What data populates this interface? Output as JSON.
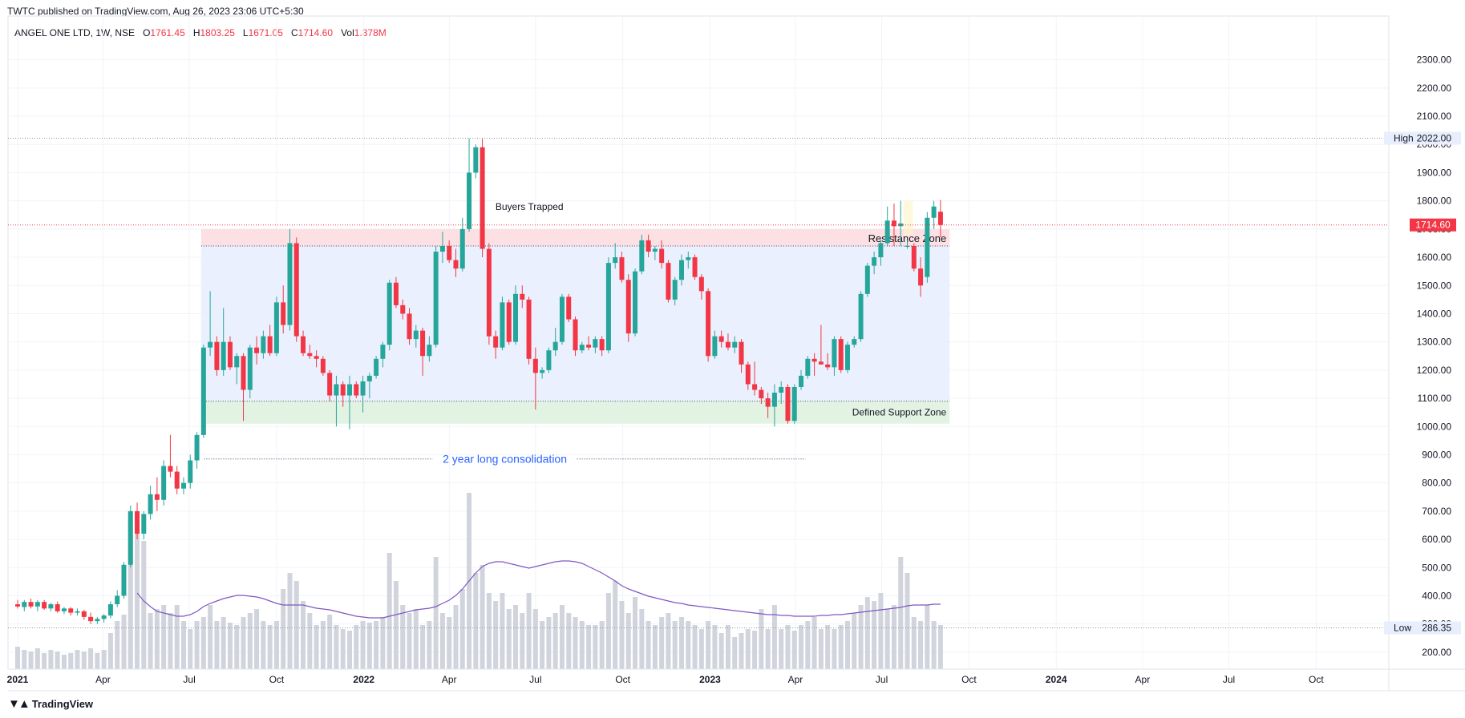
{
  "publisher_line": "TWTC published on TradingView.com, Aug 26, 2023 23:06 UTC+5:30",
  "symbol": "ANGEL ONE LTD, 1W, NSE",
  "ohlc": {
    "O_label": "O",
    "O": "1761.45",
    "H_label": "H",
    "H": "1803.25",
    "L_label": "L",
    "L": "1671.05",
    "C_label": "C",
    "C": "1714.60",
    "Vol_label": "Vol",
    "Vol": "1.378M"
  },
  "branding": "TradingView",
  "colors": {
    "up": "#26a69a",
    "down": "#f23645",
    "volume": "#d1d4dc",
    "ma": "#7e57c2",
    "resistance_fill": "#fcdde0",
    "consolidation_fill": "#e8eefd",
    "support_fill": "#dff2e1",
    "label_blue": "#2962ff"
  },
  "chart_data": {
    "type": "candlestick",
    "interval": "1W",
    "price_axis": {
      "range": [
        140,
        2370
      ],
      "ticks": [
        200,
        300,
        400,
        500,
        600,
        700,
        800,
        900,
        1000,
        1100,
        1200,
        1300,
        1400,
        1500,
        1600,
        1700,
        1800,
        1900,
        2000,
        2100,
        2200,
        2300
      ],
      "tick_labels": [
        "200.00",
        "300.00",
        "400.00",
        "500.00",
        "600.00",
        "700.00",
        "800.00",
        "900.00",
        "1000.00",
        "1100.00",
        "1200.00",
        "1300.00",
        "1400.00",
        "1500.00",
        "1600.00",
        "1700.00",
        "1800.00",
        "1900.00",
        "2000.00",
        "2100.00",
        "2200.00",
        "2300.00"
      ]
    },
    "time_axis": {
      "labels": [
        {
          "text": "2021",
          "date": "2021-01-01",
          "bold": true
        },
        {
          "text": "Apr",
          "date": "2021-04-01"
        },
        {
          "text": "Jul",
          "date": "2021-07-01"
        },
        {
          "text": "Oct",
          "date": "2021-10-01"
        },
        {
          "text": "2022",
          "date": "2022-01-01",
          "bold": true
        },
        {
          "text": "Apr",
          "date": "2022-04-01"
        },
        {
          "text": "Jul",
          "date": "2022-07-01"
        },
        {
          "text": "Oct",
          "date": "2022-10-01"
        },
        {
          "text": "2023",
          "date": "2023-01-01",
          "bold": true
        },
        {
          "text": "Apr",
          "date": "2023-04-01"
        },
        {
          "text": "Jul",
          "date": "2023-07-01"
        },
        {
          "text": "Oct",
          "date": "2023-10-01"
        },
        {
          "text": "2024",
          "date": "2024-01-01",
          "bold": true
        },
        {
          "text": "Apr",
          "date": "2024-04-01"
        },
        {
          "text": "Jul",
          "date": "2024-07-01"
        },
        {
          "text": "Oct",
          "date": "2024-10-01"
        }
      ]
    },
    "first_candle_date": "2021-01-01",
    "candles_ohlc": [
      [
        370,
        385,
        355,
        362
      ],
      [
        360,
        385,
        345,
        378
      ],
      [
        378,
        390,
        355,
        362
      ],
      [
        362,
        385,
        345,
        378
      ],
      [
        378,
        385,
        350,
        355
      ],
      [
        355,
        375,
        345,
        370
      ],
      [
        370,
        380,
        340,
        345
      ],
      [
        345,
        360,
        335,
        355
      ],
      [
        355,
        360,
        330,
        340
      ],
      [
        340,
        355,
        330,
        345
      ],
      [
        345,
        350,
        315,
        325
      ],
      [
        325,
        340,
        300,
        310
      ],
      [
        310,
        325,
        300,
        318
      ],
      [
        318,
        335,
        305,
        330
      ],
      [
        330,
        380,
        320,
        370
      ],
      [
        370,
        420,
        360,
        400
      ],
      [
        400,
        520,
        390,
        510
      ],
      [
        510,
        720,
        500,
        700
      ],
      [
        700,
        730,
        600,
        620
      ],
      [
        620,
        700,
        600,
        690
      ],
      [
        690,
        790,
        670,
        760
      ],
      [
        760,
        820,
        700,
        740
      ],
      [
        740,
        880,
        720,
        860
      ],
      [
        860,
        970,
        820,
        840
      ],
      [
        840,
        860,
        760,
        780
      ],
      [
        780,
        820,
        760,
        800
      ],
      [
        800,
        900,
        780,
        880
      ],
      [
        880,
        980,
        850,
        970
      ],
      [
        970,
        1290,
        960,
        1280
      ],
      [
        1280,
        1480,
        1250,
        1300
      ],
      [
        1300,
        1320,
        1180,
        1200
      ],
      [
        1200,
        1420,
        1180,
        1300
      ],
      [
        1300,
        1320,
        1200,
        1210
      ],
      [
        1210,
        1260,
        1150,
        1250
      ],
      [
        1250,
        1260,
        1020,
        1130
      ],
      [
        1130,
        1290,
        1100,
        1280
      ],
      [
        1280,
        1320,
        1220,
        1260
      ],
      [
        1260,
        1340,
        1240,
        1320
      ],
      [
        1320,
        1360,
        1250,
        1260
      ],
      [
        1260,
        1460,
        1250,
        1440
      ],
      [
        1440,
        1500,
        1330,
        1360
      ],
      [
        1360,
        1700,
        1340,
        1650
      ],
      [
        1650,
        1670,
        1300,
        1320
      ],
      [
        1320,
        1340,
        1250,
        1260
      ],
      [
        1260,
        1290,
        1240,
        1250
      ],
      [
        1250,
        1270,
        1210,
        1240
      ],
      [
        1240,
        1250,
        1180,
        1190
      ],
      [
        1190,
        1200,
        1090,
        1110
      ],
      [
        1110,
        1180,
        1000,
        1150
      ],
      [
        1150,
        1160,
        1070,
        1110
      ],
      [
        1110,
        1180,
        990,
        1150
      ],
      [
        1150,
        1160,
        1100,
        1110
      ],
      [
        1110,
        1180,
        1050,
        1160
      ],
      [
        1160,
        1190,
        1100,
        1180
      ],
      [
        1180,
        1250,
        1170,
        1240
      ],
      [
        1240,
        1300,
        1210,
        1290
      ],
      [
        1290,
        1520,
        1270,
        1510
      ],
      [
        1510,
        1530,
        1420,
        1430
      ],
      [
        1430,
        1450,
        1380,
        1400
      ],
      [
        1400,
        1420,
        1290,
        1310
      ],
      [
        1310,
        1360,
        1280,
        1340
      ],
      [
        1340,
        1350,
        1180,
        1250
      ],
      [
        1250,
        1320,
        1230,
        1290
      ],
      [
        1290,
        1640,
        1280,
        1620
      ],
      [
        1620,
        1690,
        1580,
        1640
      ],
      [
        1640,
        1660,
        1580,
        1590
      ],
      [
        1590,
        1630,
        1530,
        1560
      ],
      [
        1560,
        1740,
        1550,
        1700
      ],
      [
        1700,
        2022,
        1690,
        1900
      ],
      [
        1900,
        2000,
        1880,
        1990
      ],
      [
        1990,
        2020,
        1600,
        1630
      ],
      [
        1630,
        1650,
        1290,
        1320
      ],
      [
        1320,
        1340,
        1240,
        1280
      ],
      [
        1280,
        1460,
        1270,
        1440
      ],
      [
        1440,
        1450,
        1290,
        1300
      ],
      [
        1300,
        1500,
        1290,
        1470
      ],
      [
        1470,
        1500,
        1420,
        1450
      ],
      [
        1450,
        1460,
        1220,
        1240
      ],
      [
        1240,
        1280,
        1060,
        1190
      ],
      [
        1190,
        1210,
        1170,
        1200
      ],
      [
        1200,
        1280,
        1190,
        1270
      ],
      [
        1270,
        1350,
        1250,
        1300
      ],
      [
        1300,
        1470,
        1290,
        1460
      ],
      [
        1460,
        1470,
        1370,
        1380
      ],
      [
        1380,
        1390,
        1250,
        1270
      ],
      [
        1270,
        1300,
        1260,
        1290
      ],
      [
        1290,
        1320,
        1270,
        1280
      ],
      [
        1280,
        1320,
        1260,
        1310
      ],
      [
        1310,
        1320,
        1250,
        1270
      ],
      [
        1270,
        1600,
        1260,
        1580
      ],
      [
        1580,
        1650,
        1560,
        1600
      ],
      [
        1600,
        1620,
        1510,
        1520
      ],
      [
        1520,
        1540,
        1300,
        1330
      ],
      [
        1330,
        1560,
        1320,
        1550
      ],
      [
        1550,
        1680,
        1540,
        1660
      ],
      [
        1660,
        1680,
        1600,
        1620
      ],
      [
        1620,
        1640,
        1590,
        1630
      ],
      [
        1630,
        1660,
        1560,
        1580
      ],
      [
        1580,
        1590,
        1440,
        1450
      ],
      [
        1450,
        1530,
        1430,
        1520
      ],
      [
        1520,
        1610,
        1500,
        1590
      ],
      [
        1590,
        1620,
        1560,
        1600
      ],
      [
        1600,
        1610,
        1520,
        1530
      ],
      [
        1530,
        1540,
        1450,
        1480
      ],
      [
        1480,
        1490,
        1230,
        1250
      ],
      [
        1250,
        1340,
        1240,
        1320
      ],
      [
        1320,
        1340,
        1280,
        1300
      ],
      [
        1300,
        1330,
        1270,
        1280
      ],
      [
        1280,
        1320,
        1260,
        1300
      ],
      [
        1300,
        1310,
        1190,
        1220
      ],
      [
        1220,
        1230,
        1130,
        1150
      ],
      [
        1150,
        1230,
        1110,
        1130
      ],
      [
        1130,
        1140,
        1080,
        1100
      ],
      [
        1100,
        1120,
        1030,
        1070
      ],
      [
        1070,
        1150,
        1000,
        1120
      ],
      [
        1120,
        1160,
        1080,
        1140
      ],
      [
        1140,
        1150,
        1010,
        1020
      ],
      [
        1020,
        1150,
        1010,
        1140
      ],
      [
        1140,
        1200,
        1130,
        1180
      ],
      [
        1180,
        1250,
        1170,
        1240
      ],
      [
        1240,
        1260,
        1180,
        1230
      ],
      [
        1230,
        1360,
        1220,
        1220
      ],
      [
        1220,
        1260,
        1200,
        1210
      ],
      [
        1210,
        1320,
        1180,
        1310
      ],
      [
        1310,
        1320,
        1190,
        1200
      ],
      [
        1200,
        1300,
        1190,
        1290
      ],
      [
        1290,
        1320,
        1280,
        1310
      ],
      [
        1310,
        1480,
        1300,
        1470
      ],
      [
        1470,
        1580,
        1460,
        1570
      ],
      [
        1570,
        1620,
        1540,
        1600
      ],
      [
        1600,
        1660,
        1570,
        1650
      ],
      [
        1650,
        1780,
        1640,
        1730
      ],
      [
        1730,
        1790,
        1640,
        1710
      ],
      [
        1710,
        1800,
        1640,
        1720
      ],
      [
        1640,
        1660,
        1630,
        1640
      ],
      [
        1640,
        1650,
        1550,
        1560
      ],
      [
        1560,
        1600,
        1460,
        1500
      ],
      [
        1530,
        1760,
        1510,
        1740
      ],
      [
        1740,
        1800,
        1700,
        1780
      ],
      [
        1761.45,
        1803.25,
        1671.05,
        1714.6
      ]
    ],
    "volume": [
      28,
      24,
      22,
      26,
      20,
      24,
      22,
      18,
      20,
      24,
      22,
      26,
      20,
      24,
      45,
      60,
      68,
      185,
      185,
      160,
      70,
      75,
      80,
      70,
      80,
      60,
      50,
      60,
      65,
      80,
      60,
      65,
      58,
      55,
      65,
      70,
      75,
      60,
      55,
      60,
      100,
      120,
      110,
      85,
      70,
      55,
      60,
      68,
      55,
      50,
      48,
      55,
      60,
      58,
      60,
      65,
      145,
      110,
      80,
      70,
      75,
      55,
      60,
      140,
      70,
      65,
      80,
      100,
      220,
      120,
      130,
      95,
      85,
      95,
      75,
      80,
      70,
      95,
      75,
      60,
      65,
      70,
      80,
      70,
      65,
      60,
      55,
      55,
      60,
      95,
      110,
      85,
      70,
      90,
      75,
      60,
      55,
      65,
      70,
      60,
      65,
      60,
      55,
      50,
      60,
      55,
      45,
      55,
      40,
      45,
      50,
      48,
      75,
      50,
      80,
      50,
      55,
      48,
      55,
      60,
      65,
      50,
      55,
      50,
      55,
      60,
      70,
      80,
      90,
      85,
      95,
      75,
      80,
      140,
      120,
      65,
      60,
      80,
      60,
      55
    ],
    "volume_max_display": 210,
    "volume_ma": [
      null,
      null,
      null,
      null,
      null,
      null,
      null,
      null,
      null,
      null,
      null,
      null,
      null,
      null,
      null,
      null,
      null,
      null,
      95,
      85,
      78,
      72,
      70,
      68,
      66,
      66,
      68,
      72,
      78,
      82,
      85,
      88,
      90,
      92,
      92,
      91,
      90,
      88,
      85,
      82,
      80,
      80,
      80,
      80,
      78,
      76,
      75,
      74,
      72,
      70,
      68,
      66,
      65,
      64,
      64,
      64,
      66,
      68,
      70,
      72,
      74,
      75,
      76,
      78,
      82,
      86,
      92,
      100,
      110,
      120,
      128,
      132,
      134,
      134,
      132,
      130,
      128,
      126,
      128,
      130,
      132,
      134,
      135,
      135,
      134,
      132,
      128,
      124,
      120,
      115,
      110,
      104,
      100,
      97,
      94,
      91,
      89,
      87,
      85,
      83,
      82,
      80,
      79,
      78,
      77,
      76,
      75,
      74,
      73,
      72,
      71,
      70,
      69,
      68,
      68,
      67,
      67,
      66,
      66,
      66,
      66,
      67,
      67,
      68,
      68,
      69,
      70,
      71,
      72,
      73,
      74,
      75,
      76,
      77,
      79,
      80,
      80,
      80,
      81,
      81
    ],
    "price_labels": [
      {
        "label": "High",
        "value": "2022.00",
        "price": 2022
      },
      {
        "label": "Low",
        "value": "286.35",
        "price": 286.35
      },
      {
        "label": "",
        "value": "1714.60",
        "price": 1714.6
      }
    ],
    "zones": [
      {
        "name": "Resistance Zone",
        "from": 1640,
        "to": 1700,
        "start_index": 28,
        "end_index": 140
      },
      {
        "name": "",
        "from": 1090,
        "to": 1640,
        "start_index": 28,
        "end_index": 140
      },
      {
        "name": "Defined Support Zone",
        "from": 1010,
        "to": 1090,
        "start_index": 28,
        "end_index": 140
      }
    ],
    "annotations": [
      {
        "text": "Buyers Trapped",
        "index": 71,
        "price": 1740
      },
      {
        "text": "2 year long consolidation",
        "from_index": 30,
        "to_index": 117,
        "price": 885
      }
    ]
  }
}
